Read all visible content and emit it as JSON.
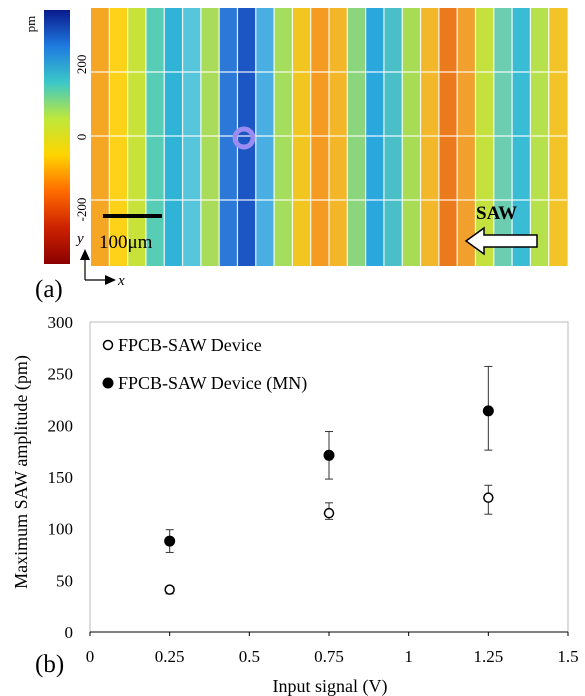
{
  "panel_a": {
    "label": "(a)",
    "colorbar": {
      "unit": "pm",
      "ticks": [
        {
          "value": 200,
          "label": "200"
        },
        {
          "value": 0,
          "label": "0"
        },
        {
          "value": -200,
          "label": "-200"
        }
      ],
      "range": [
        -350,
        350
      ],
      "colors": [
        "#8b0000",
        "#cc2200",
        "#ff6a00",
        "#ffd400",
        "#bfe83a",
        "#3cc8c8",
        "#1e7be0",
        "#0a1a8c"
      ]
    },
    "scale_bar_label": "100μm",
    "wave_label": "SAW",
    "axis_x": "x",
    "axis_y": "y",
    "map_columns": [
      "#f5a623",
      "#ffd21a",
      "#c8e23a",
      "#58cdb6",
      "#2fb4d8",
      "#57c6dc",
      "#a9dc5a",
      "#2b78d8",
      "#1b56c4",
      "#49aee2",
      "#a5de5c",
      "#f2c620",
      "#f59b22",
      "#f3b629",
      "#8bd57c",
      "#2aa8de",
      "#4bbfc8",
      "#a8dc54",
      "#f3b72a",
      "#eb7a1c",
      "#f0a02c",
      "#c4e13e",
      "#6ccdb0",
      "#39bcd4",
      "#b6e04c",
      "#f2c428"
    ]
  },
  "panel_b": {
    "label": "(b)"
  },
  "chart_data": {
    "type": "scatter",
    "xlabel": "Input signal (V)",
    "ylabel": "Maximum SAW amplitude (pm)",
    "xlim": [
      0,
      1.5
    ],
    "ylim": [
      0,
      300
    ],
    "x_ticks": [
      {
        "value": 0,
        "label": "0"
      },
      {
        "value": 0.25,
        "label": "0.25"
      },
      {
        "value": 0.5,
        "label": "0.5"
      },
      {
        "value": 0.75,
        "label": "0.75"
      },
      {
        "value": 1,
        "label": "1"
      },
      {
        "value": 1.25,
        "label": "1.25"
      },
      {
        "value": 1.5,
        "label": "1.5"
      }
    ],
    "y_ticks": [
      {
        "value": 0,
        "label": "0"
      },
      {
        "value": 50,
        "label": "50"
      },
      {
        "value": 100,
        "label": "100"
      },
      {
        "value": 150,
        "label": "150"
      },
      {
        "value": 200,
        "label": "200"
      },
      {
        "value": 250,
        "label": "250"
      },
      {
        "value": 300,
        "label": "300"
      }
    ],
    "grid": false,
    "legend_position": "top-left",
    "series": [
      {
        "name": "FPCB-SAW Device",
        "marker": "open-circle",
        "x": [
          0.25,
          0.75,
          1.25
        ],
        "y": [
          41,
          115,
          130
        ],
        "err_low": [
          37,
          109,
          114
        ],
        "err_high": [
          44,
          125,
          142
        ]
      },
      {
        "name": "FPCB-SAW Device (MN)",
        "marker": "filled-circle",
        "x": [
          0.25,
          0.75,
          1.25
        ],
        "y": [
          88,
          171,
          214
        ],
        "err_low": [
          77,
          148,
          176
        ],
        "err_high": [
          99,
          194,
          257
        ]
      }
    ]
  }
}
